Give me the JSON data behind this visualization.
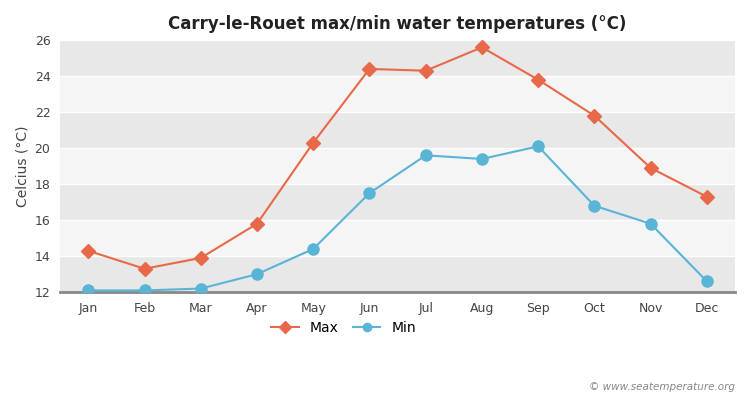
{
  "title": "Carry-le-Rouet max/min water temperatures (°C)",
  "ylabel": "Celcius (°C)",
  "months": [
    "Jan",
    "Feb",
    "Mar",
    "Apr",
    "May",
    "Jun",
    "Jul",
    "Aug",
    "Sep",
    "Oct",
    "Nov",
    "Dec"
  ],
  "max_temps": [
    14.3,
    13.3,
    13.9,
    15.8,
    20.3,
    24.4,
    24.3,
    25.6,
    23.8,
    21.8,
    18.9,
    17.3
  ],
  "min_temps": [
    12.1,
    12.1,
    12.2,
    13.0,
    14.4,
    17.5,
    19.6,
    19.4,
    20.1,
    16.8,
    15.8,
    12.6
  ],
  "max_color": "#e8694a",
  "min_color": "#5ab4d6",
  "band_colors": [
    "#e8e8e8",
    "#f5f5f5"
  ],
  "ylim": [
    12,
    26
  ],
  "yticks": [
    12,
    14,
    16,
    18,
    20,
    22,
    24,
    26
  ],
  "watermark": "© www.seatemperature.org",
  "legend_max": "Max",
  "legend_min": "Min"
}
